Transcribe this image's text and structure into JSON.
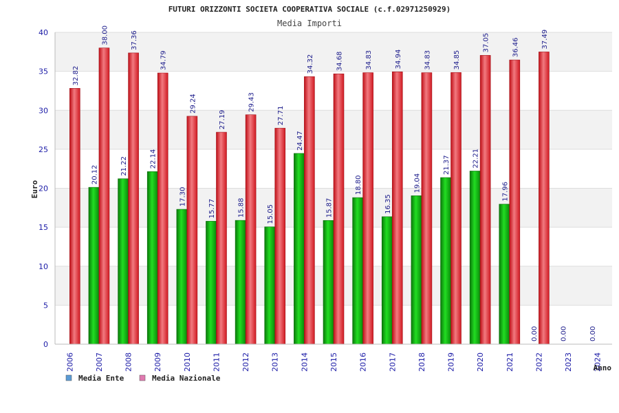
{
  "chart_data": {
    "type": "bar",
    "title": "FUTURI ORIZZONTI SOCIETA COOPERATIVA SOCIALE (c.f.02971250929)",
    "subtitle": "Media Importi",
    "ylabel": "Euro",
    "xlabel": "Anno",
    "ylim": [
      0,
      40
    ],
    "yticks": [
      0,
      5,
      10,
      15,
      20,
      25,
      30,
      35,
      40
    ],
    "grid": true,
    "legend_position": "bottom-left",
    "categories": [
      "2006",
      "2007",
      "2008",
      "2009",
      "2010",
      "2011",
      "2012",
      "2013",
      "2014",
      "2015",
      "2016",
      "2017",
      "2018",
      "2019",
      "2020",
      "2021",
      "2022",
      "2023",
      "2024"
    ],
    "series": [
      {
        "name": "Media Ente",
        "color": "#1fb81f",
        "legend_color": "#5b9bd5",
        "values": [
          null,
          20.12,
          21.22,
          22.14,
          17.3,
          15.77,
          15.88,
          15.05,
          24.47,
          15.87,
          18.8,
          16.35,
          19.04,
          21.37,
          22.21,
          17.96,
          0.0,
          0.0,
          0.0
        ],
        "labels": [
          "",
          "20.12",
          "21.22",
          "22.14",
          "17.30",
          "15.77",
          "15.88",
          "15.05",
          "24.47",
          "15.87",
          "18.80",
          "16.35",
          "19.04",
          "21.37",
          "22.21",
          "17.96",
          "0.00",
          "0.00",
          "0.00"
        ]
      },
      {
        "name": "Media Nazionale",
        "color": "#e8202a",
        "legend_color": "#e07ab0",
        "values": [
          32.82,
          38.0,
          37.36,
          34.79,
          29.24,
          27.19,
          29.43,
          27.71,
          34.32,
          34.68,
          34.83,
          34.94,
          34.83,
          34.85,
          37.05,
          36.46,
          37.49,
          null,
          null
        ],
        "labels": [
          "32.82",
          "38.00",
          "37.36",
          "34.79",
          "29.24",
          "27.19",
          "29.43",
          "27.71",
          "34.32",
          "34.68",
          "34.83",
          "34.94",
          "34.83",
          "34.85",
          "37.05",
          "36.46",
          "37.49",
          "",
          ""
        ]
      }
    ]
  }
}
